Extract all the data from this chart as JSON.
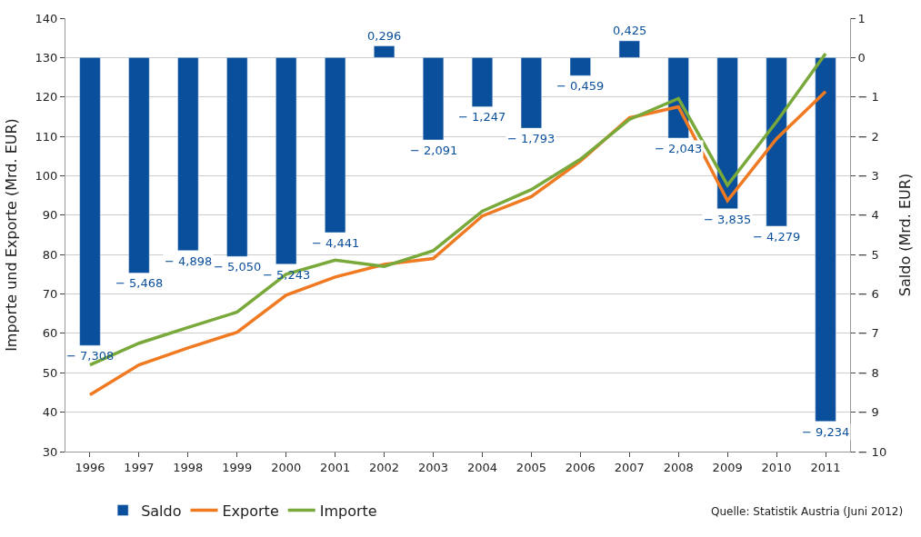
{
  "chart_data": {
    "type": "bar",
    "ylabel": "Importe und Exporte (Mrd. EUR)",
    "y2label": "Saldo (Mrd. EUR)",
    "categories": [
      "1996",
      "1997",
      "1998",
      "1999",
      "2000",
      "2001",
      "2002",
      "2003",
      "2004",
      "2005",
      "2006",
      "2007",
      "2008",
      "2009",
      "2010",
      "2011"
    ],
    "series": [
      {
        "name": "Saldo",
        "type": "bar",
        "axis": "y2",
        "color": "#0a4f9b",
        "values": [
          -7.308,
          -5.468,
          -4.898,
          -5.05,
          -5.243,
          -4.441,
          0.296,
          -2.091,
          -1.247,
          -1.793,
          -0.459,
          0.425,
          -2.043,
          -3.835,
          -4.279,
          -9.234
        ],
        "value_labels": [
          "− 7,308",
          "− 5,468",
          "− 4,898",
          "− 5,050",
          "− 5,243",
          "− 4,441",
          "0,296",
          "− 2,091",
          "− 1,247",
          "− 1,793",
          "− 0,459",
          "0,425",
          "− 2,043",
          "− 3,835",
          "− 4,279",
          "− 9,234"
        ]
      },
      {
        "name": "Exporte",
        "type": "line",
        "color": "#f07a22",
        "values": [
          44.4,
          52.0,
          56.3,
          60.3,
          69.7,
          74.3,
          77.5,
          79.0,
          89.8,
          94.7,
          103.7,
          114.7,
          117.5,
          93.7,
          109.4,
          121.4
        ]
      },
      {
        "name": "Importe",
        "type": "line",
        "color": "#78a93a",
        "values": [
          52.0,
          57.5,
          61.5,
          65.4,
          75.0,
          78.6,
          77.0,
          81.0,
          91.0,
          96.5,
          104.2,
          114.3,
          119.6,
          97.6,
          113.7,
          131.0
        ]
      }
    ],
    "ylim": [
      30,
      140
    ],
    "yticks": [
      30,
      40,
      50,
      60,
      70,
      80,
      90,
      100,
      110,
      120,
      130,
      140
    ],
    "y2lim": [
      -10,
      1
    ],
    "y2ticks": [
      {
        "value": -10,
        "label": "− 10"
      },
      {
        "value": -9,
        "label": "− 9"
      },
      {
        "value": -8,
        "label": "− 8"
      },
      {
        "value": -7,
        "label": "− 7"
      },
      {
        "value": -6,
        "label": "− 6"
      },
      {
        "value": -5,
        "label": "− 5"
      },
      {
        "value": -4,
        "label": "− 4"
      },
      {
        "value": -3,
        "label": "− 3"
      },
      {
        "value": -2,
        "label": "− 2"
      },
      {
        "value": -1,
        "label": "− 1"
      },
      0,
      1
    ],
    "grid": "y",
    "legend": "bottom",
    "line_style": "solid",
    "marker": "none",
    "annotations": [
      "Quelle: Statistik Austria (Juni 2012)"
    ]
  }
}
